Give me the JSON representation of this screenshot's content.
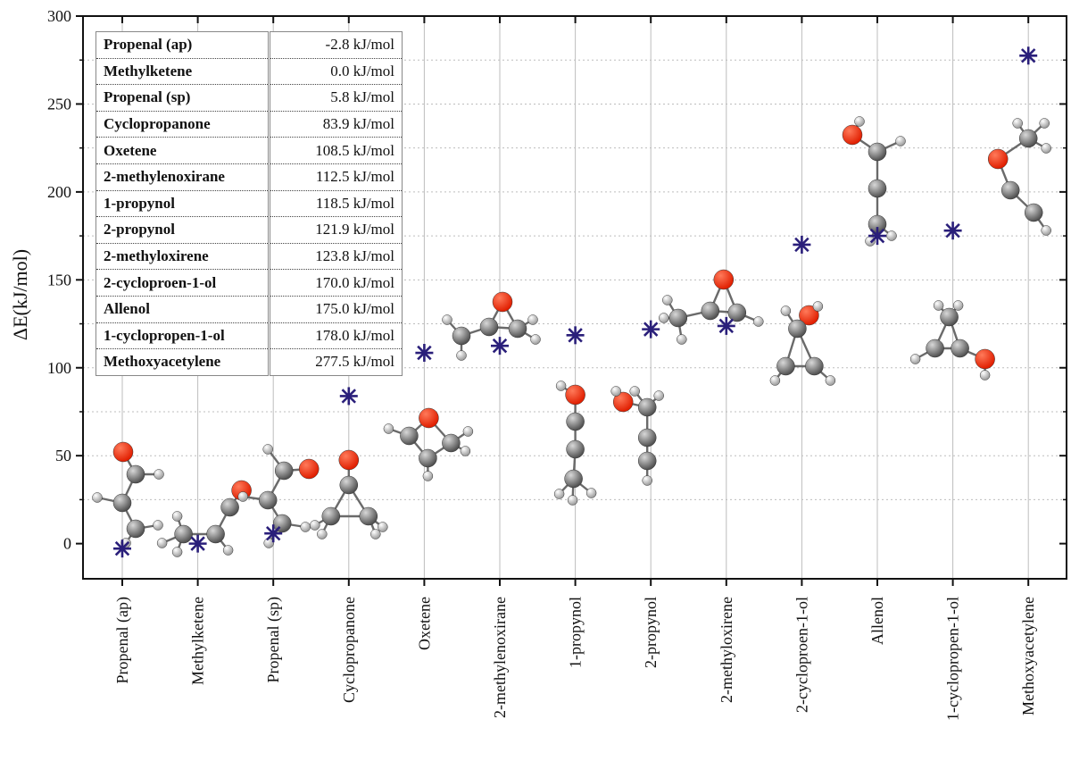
{
  "chart_data": {
    "type": "scatter",
    "title": "",
    "xlabel": "",
    "ylabel": "ΔE(kJ/mol)",
    "ylim": [
      -20,
      300
    ],
    "yticks": [
      0,
      50,
      100,
      150,
      200,
      250,
      300
    ],
    "grid": true,
    "marker": "asterisk",
    "marker_color": "#2a1f7a",
    "categories": [
      "Propenal (ap)",
      "Methylketene",
      "Propenal (sp)",
      "Cyclopropanone",
      "Oxetene",
      "2-methylenoxirane",
      "1-propynol",
      "2-propynol",
      "2-methyloxirene",
      "2-cycloproen-1-ol",
      "Allenol",
      "1-cyclopropen-1-ol",
      "Methoxyacetylene"
    ],
    "values": [
      -2.8,
      0.0,
      5.8,
      83.9,
      108.5,
      112.5,
      118.5,
      121.9,
      123.8,
      170.0,
      175.0,
      178.0,
      277.5
    ],
    "legend_table": {
      "position": "top-left",
      "rows": [
        {
          "name": "Propenal (ap)",
          "value": "-2.8 kJ/mol"
        },
        {
          "name": "Methylketene",
          "value": "0.0 kJ/mol"
        },
        {
          "name": "Propenal (sp)",
          "value": "5.8 kJ/mol"
        },
        {
          "name": "Cyclopropanone",
          "value": "83.9 kJ/mol"
        },
        {
          "name": "Oxetene",
          "value": "108.5 kJ/mol"
        },
        {
          "name": "2-methylenoxirane",
          "value": "112.5 kJ/mol"
        },
        {
          "name": "1-propynol",
          "value": "118.5 kJ/mol"
        },
        {
          "name": "2-propynol",
          "value": "121.9 kJ/mol"
        },
        {
          "name": "2-methyloxirene",
          "value": "123.8 kJ/mol"
        },
        {
          "name": "2-cycloproen-1-ol",
          "value": "170.0 kJ/mol"
        },
        {
          "name": "Allenol",
          "value": "175.0 kJ/mol"
        },
        {
          "name": "1-cyclopropen-1-ol",
          "value": "178.0 kJ/mol"
        },
        {
          "name": "Methoxyacetylene",
          "value": "277.5 kJ/mol"
        }
      ]
    },
    "colors": {
      "carbon": "#505050",
      "oxygen": "#e01e00",
      "hydrogen": "#e6e6e6",
      "grid": "#bdbdbd"
    }
  }
}
